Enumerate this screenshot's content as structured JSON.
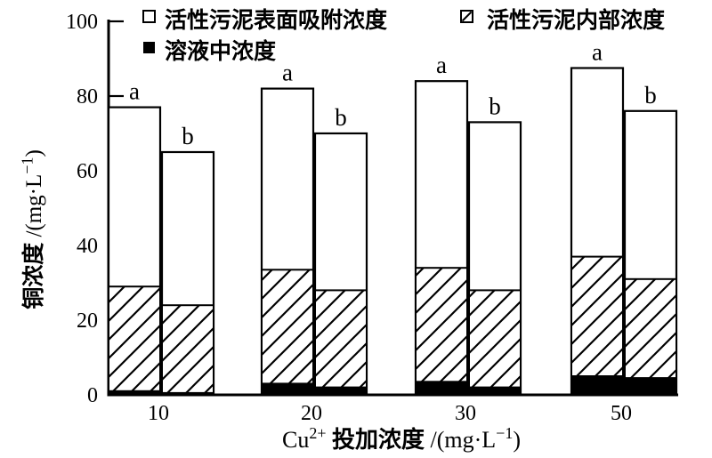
{
  "figure": {
    "background": "#ffffff",
    "ink_color": "#000000"
  },
  "legend": {
    "position": "top",
    "items": [
      {
        "label": "活性污泥表面吸附浓度",
        "swatch": "white",
        "row": 1,
        "col": 1
      },
      {
        "label": "活性污泥内部浓度",
        "swatch": "hatch",
        "row": 1,
        "col": 2
      },
      {
        "label": "溶液中浓度",
        "swatch": "black",
        "row": 2,
        "col": 1
      }
    ]
  },
  "chart_data": {
    "type": "bar",
    "subtype": "grouped-stacked",
    "title": "",
    "xlabel": "Cu2+ 投加浓度 /(mg·L-1)",
    "ylabel": "铜浓度 /(mg·L-1)",
    "xlabel_parts": [
      {
        "t": "Cu"
      },
      {
        "t": "2+",
        "sup": true
      },
      {
        "t": " 投加浓度",
        "b": true
      },
      {
        "t": " /(mg·L"
      },
      {
        "t": "−1",
        "sup": true
      },
      {
        "t": ")"
      }
    ],
    "ylabel_parts": [
      {
        "t": "铜浓度",
        "b": true
      },
      {
        "t": " /(mg·L"
      },
      {
        "t": "−1",
        "sup": true
      },
      {
        "t": ")"
      }
    ],
    "categories": [
      "10",
      "20",
      "30",
      "50"
    ],
    "group_bar_labels": [
      "a",
      "b"
    ],
    "ylim": [
      0,
      100
    ],
    "yticks": [
      0,
      20,
      40,
      60,
      80,
      100
    ],
    "ytick_labels": [
      "0",
      "20",
      "40",
      "60",
      "80",
      "100"
    ],
    "grid": false,
    "legend_position": "top",
    "series": [
      {
        "name": "溶液中浓度",
        "fill": "black",
        "bars_a": [
          1,
          3,
          3.5,
          5
        ],
        "bars_b": [
          0.5,
          2,
          2,
          4.5
        ]
      },
      {
        "name": "活性污泥内部浓度",
        "fill": "hatch",
        "bars_a": [
          28,
          30.5,
          30.5,
          32
        ],
        "bars_b": [
          23.5,
          26,
          26,
          26.5
        ]
      },
      {
        "name": "活性污泥表面吸附浓度",
        "fill": "white",
        "bars_a": [
          48,
          48.5,
          50,
          50.5
        ],
        "bars_b": [
          41,
          42,
          45,
          45
        ]
      }
    ],
    "totals_a": [
      77,
      82,
      84,
      87.5
    ],
    "totals_b": [
      65,
      70,
      73,
      76
    ]
  }
}
